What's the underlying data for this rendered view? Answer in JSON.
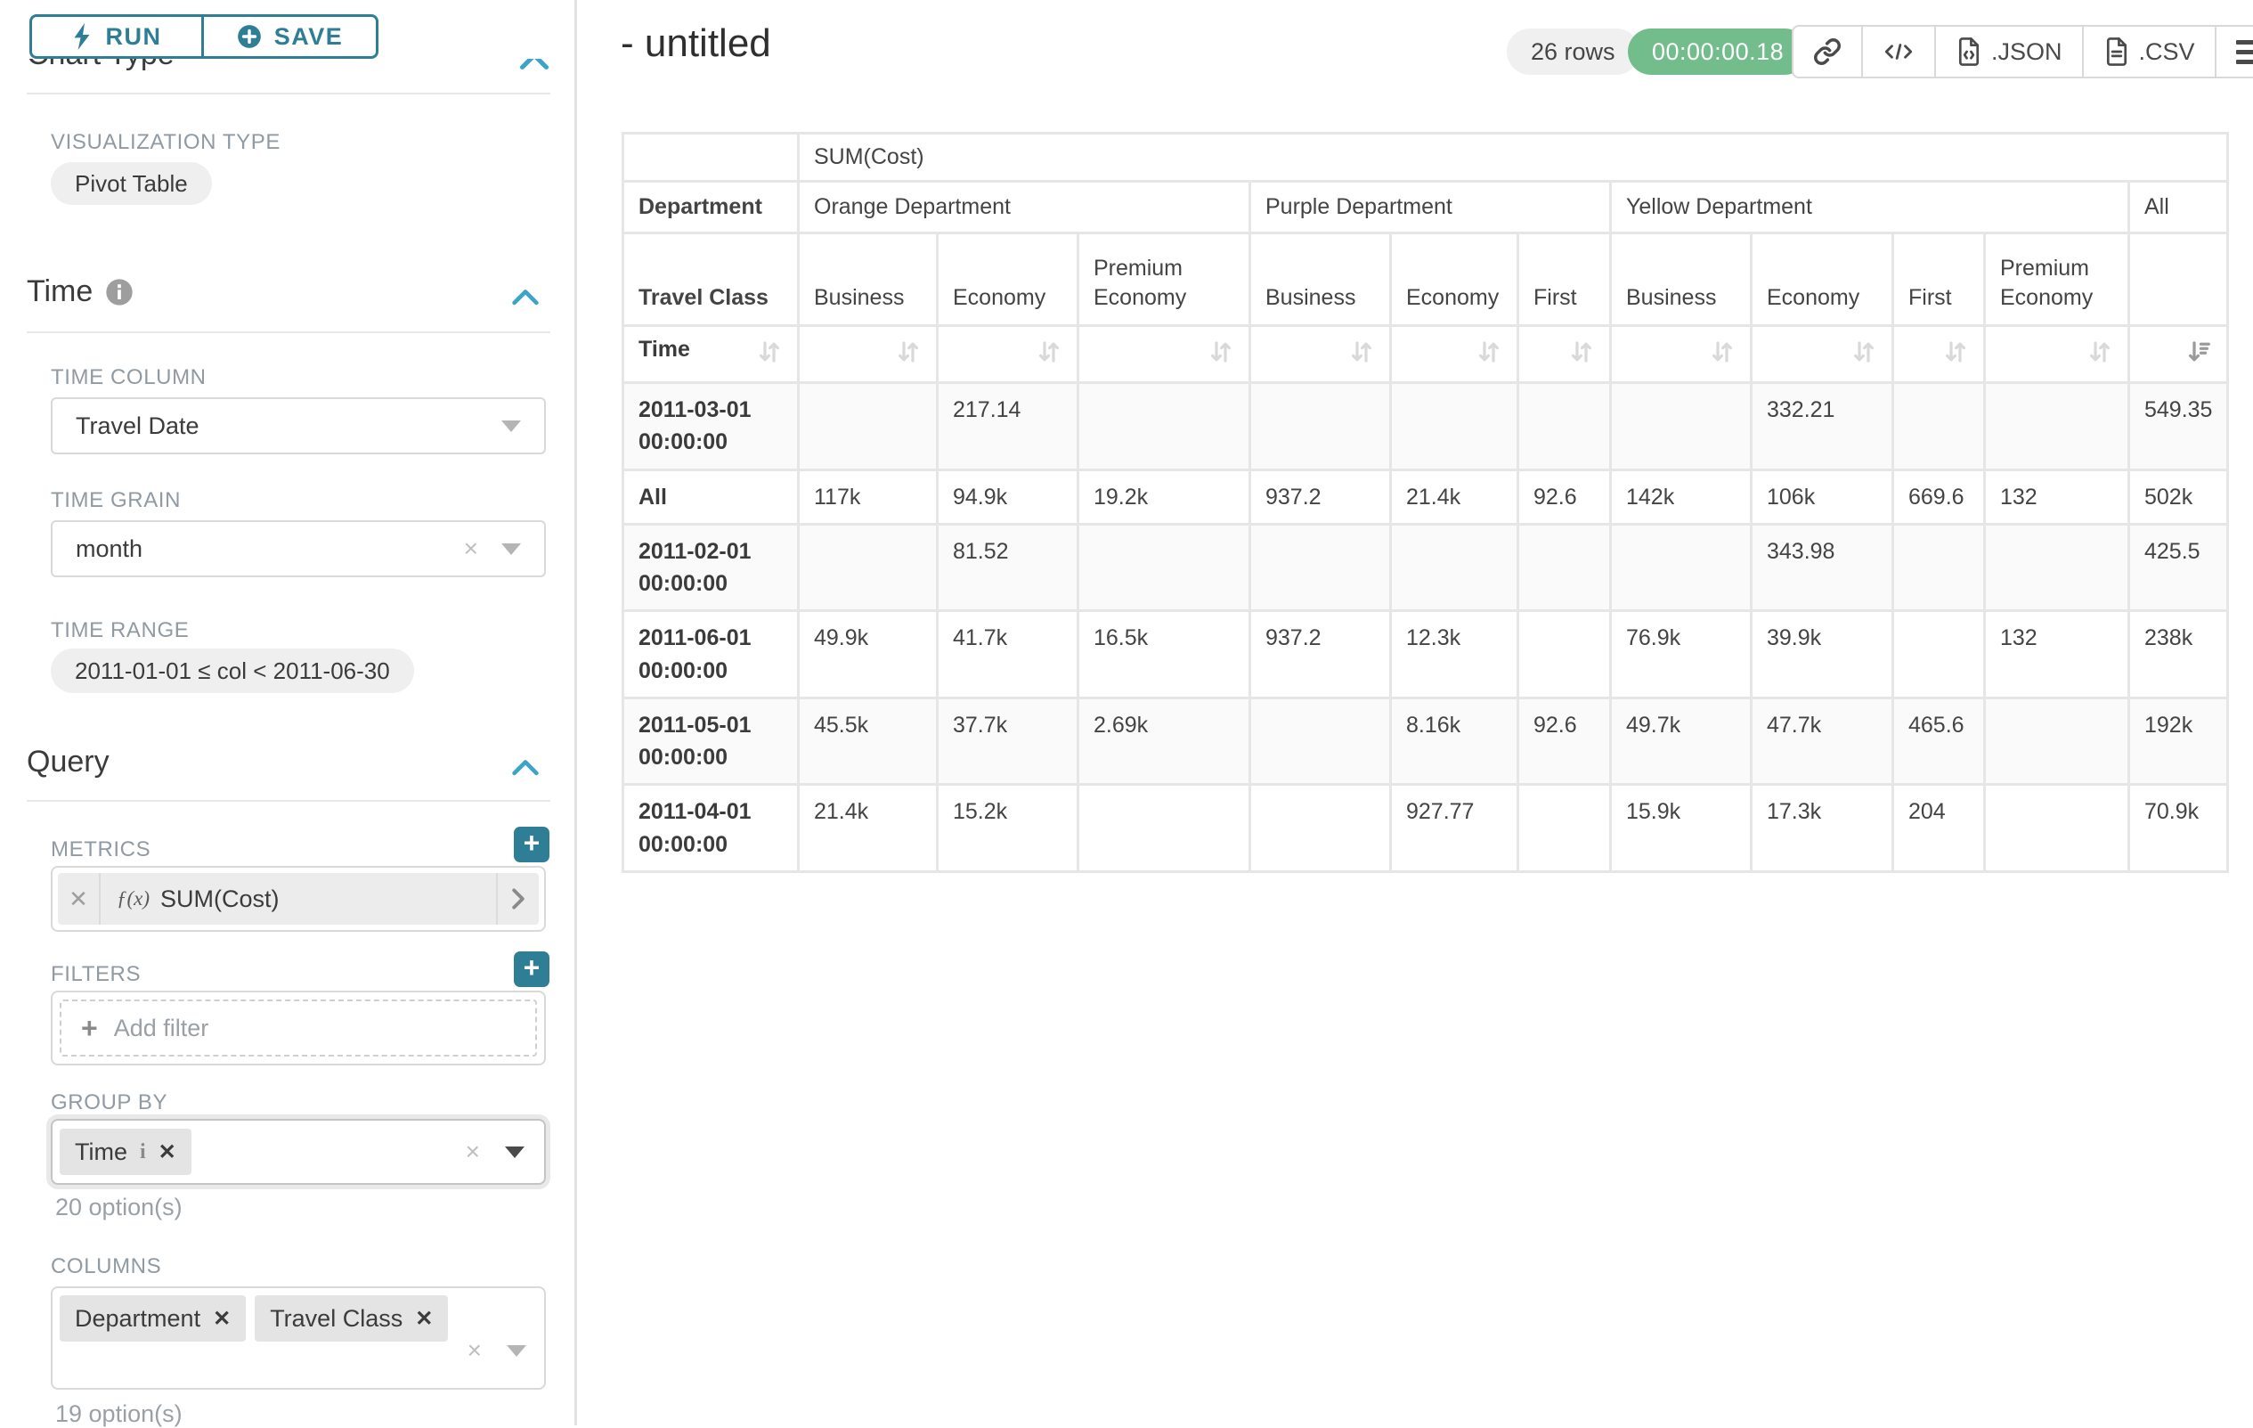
{
  "colors": {
    "teal": "#2e7e95",
    "chevron_blue": "#3da3c7",
    "timer_green": "#73bd8d",
    "badge_gray": "#f0f0f0",
    "label_gray": "#909aa3",
    "text_dark": "#3b3b3b",
    "control_border": "#d9d9d9",
    "table_border": "#e6e6e6"
  },
  "icons": {
    "remove": "✕",
    "clear": "×",
    "plus": "+",
    "info": "i"
  },
  "sidebar": {
    "run_button": "RUN",
    "save_button": "SAVE",
    "chart_type_header": "Chart Type",
    "visualization": {
      "label": "VISUALIZATION TYPE",
      "value": "Pivot Table"
    },
    "time": {
      "title": "Time",
      "time_column": {
        "label": "TIME COLUMN",
        "value": "Travel Date"
      },
      "time_grain": {
        "label": "TIME GRAIN",
        "value": "month"
      },
      "time_range": {
        "label": "TIME RANGE",
        "value": "2011-01-01 ≤ col < 2011-06-30"
      }
    },
    "query": {
      "title": "Query",
      "metrics": {
        "label": "METRICS",
        "fx": "ƒ(x)",
        "value": "SUM(Cost)"
      },
      "filters": {
        "label": "FILTERS",
        "placeholder": "Add filter"
      },
      "group_by": {
        "label": "GROUP BY",
        "tags": [
          "Time"
        ],
        "hint": "20 option(s)"
      },
      "columns": {
        "label": "COLUMNS",
        "tags": [
          "Department",
          "Travel Class"
        ],
        "hint": "19 option(s)"
      }
    }
  },
  "main": {
    "title": "- untitled",
    "rows_badge": "26 rows",
    "timer_badge": "00:00:00.18",
    "export_json": ".JSON",
    "export_csv": ".CSV"
  },
  "chart_data": {
    "type": "table",
    "metric_header": "SUM(Cost)",
    "corner": {
      "col_dim_1": "Department",
      "col_dim_2": "Travel Class",
      "row_dim": "Time"
    },
    "column_groups": [
      {
        "label": "Orange Department",
        "columns": [
          "Business",
          "Economy",
          "Premium Economy"
        ]
      },
      {
        "label": "Purple Department",
        "columns": [
          "Business",
          "Economy",
          "First"
        ]
      },
      {
        "label": "Yellow Department",
        "columns": [
          "Business",
          "Economy",
          "First",
          "Premium Economy"
        ]
      },
      {
        "label": "All",
        "columns": [
          ""
        ]
      }
    ],
    "rows": [
      {
        "label": "2011-03-01 00:00:00",
        "values": [
          "",
          "217.14",
          "",
          "",
          "",
          "",
          "",
          "332.21",
          "",
          "",
          "549.35"
        ]
      },
      {
        "label": "All",
        "values": [
          "117k",
          "94.9k",
          "19.2k",
          "937.2",
          "21.4k",
          "92.6",
          "142k",
          "106k",
          "669.6",
          "132",
          "502k"
        ]
      },
      {
        "label": "2011-02-01 00:00:00",
        "values": [
          "",
          "81.52",
          "",
          "",
          "",
          "",
          "",
          "343.98",
          "",
          "",
          "425.5"
        ]
      },
      {
        "label": "2011-06-01 00:00:00",
        "values": [
          "49.9k",
          "41.7k",
          "16.5k",
          "937.2",
          "12.3k",
          "",
          "76.9k",
          "39.9k",
          "",
          "132",
          "238k"
        ]
      },
      {
        "label": "2011-05-01 00:00:00",
        "values": [
          "45.5k",
          "37.7k",
          "2.69k",
          "",
          "8.16k",
          "92.6",
          "49.7k",
          "47.7k",
          "465.6",
          "",
          "192k"
        ]
      },
      {
        "label": "2011-04-01 00:00:00",
        "values": [
          "21.4k",
          "15.2k",
          "",
          "",
          "927.77",
          "",
          "15.9k",
          "17.3k",
          "204",
          "",
          "70.9k"
        ]
      }
    ],
    "sort": {
      "active_column": "All",
      "direction": "desc"
    }
  }
}
